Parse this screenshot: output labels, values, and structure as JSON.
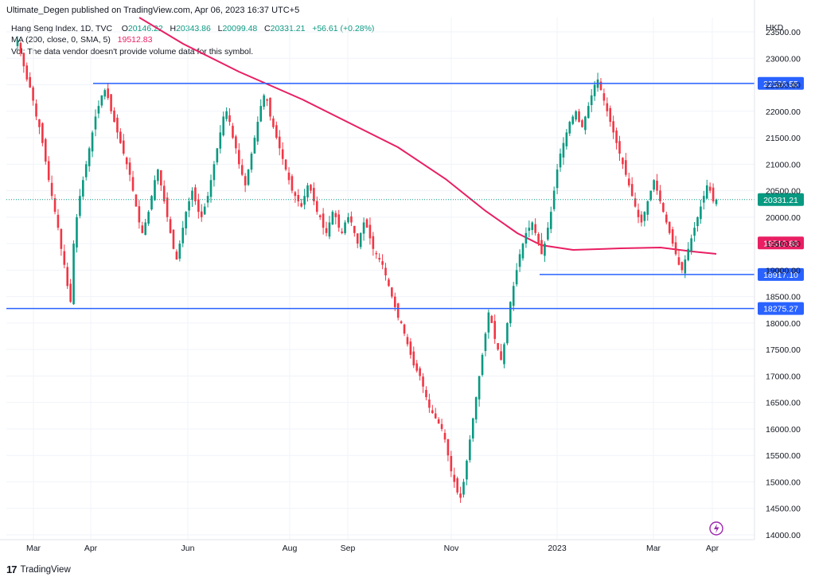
{
  "header": {
    "published": "Ultimate_Degen published on TradingView.com, Apr 06, 2023 16:37 UTC+5"
  },
  "legend": {
    "symbol": "Hang Seng Index, 1D, TVC",
    "o_label": "O",
    "o_value": "20146.22",
    "h_label": "H",
    "h_value": "20343.86",
    "l_label": "L",
    "l_value": "20099.48",
    "c_label": "C",
    "c_value": "20331.21",
    "change": "+56.61 (+0.28%)",
    "ma_label": "MA (200, close, 0, SMA, 5)",
    "ma_value": "19512.83",
    "vol_note": "Vol: The data vendor doesn't provide volume data for this symbol."
  },
  "footer": {
    "brand": "TradingView",
    "logo": "17"
  },
  "colors": {
    "up": "#089981",
    "down": "#f23645",
    "ma": "#e91e63",
    "hline": "#2962ff",
    "grid": "#f0f3fa",
    "axis_text": "#131722",
    "last_price": "#089981"
  },
  "chart_data": {
    "type": "candlestick",
    "currency": "HKD",
    "ylim": [
      13900,
      24000
    ],
    "y_ticks": [
      14000,
      14500,
      15000,
      15500,
      16000,
      16500,
      17000,
      17500,
      18000,
      18500,
      19000,
      19500,
      20000,
      20500,
      21000,
      21500,
      22000,
      22500,
      23000,
      23500
    ],
    "x_ticks": [
      "Mar",
      "Apr",
      "Jun",
      "Aug",
      "Sep",
      "Nov",
      "2023",
      "Mar",
      "Apr"
    ],
    "horizontal_lines": [
      {
        "label": "22526.55",
        "value": 22526.55
      },
      {
        "label": "18917.10",
        "value": 18917.1
      },
      {
        "label": "18275.27",
        "value": 18275.27
      }
    ],
    "last_price": {
      "label": "20331.21",
      "value": 20331.21
    },
    "ma_last": {
      "label": "19512.83",
      "value": 19512.83
    },
    "closes": [
      23350,
      23100,
      22850,
      22600,
      22450,
      22200,
      21900,
      21700,
      21400,
      21050,
      20700,
      20400,
      20100,
      19800,
      19400,
      19100,
      18700,
      18400,
      19500,
      20000,
      20400,
      20700,
      21000,
      21300,
      21600,
      21900,
      22100,
      22300,
      22400,
      22250,
      22000,
      21800,
      21600,
      21400,
      21200,
      21000,
      20800,
      20500,
      20200,
      19900,
      19700,
      19900,
      20100,
      20400,
      20700,
      20900,
      20600,
      20300,
      20000,
      19700,
      19400,
      19200,
      19500,
      19800,
      20100,
      20300,
      20500,
      20300,
      20100,
      20000,
      20200,
      20400,
      20700,
      21000,
      21300,
      21600,
      21900,
      22000,
      21800,
      21500,
      21300,
      21000,
      20800,
      20600,
      20900,
      21200,
      21500,
      21800,
      22100,
      22300,
      22200,
      21900,
      21700,
      21500,
      21300,
      21100,
      20900,
      20700,
      20500,
      20400,
      20300,
      20200,
      20400,
      20600,
      20500,
      20300,
      20100,
      20000,
      19800,
      19700,
      19900,
      20100,
      20000,
      19800,
      19700,
      19900,
      20000,
      19900,
      19700,
      19500,
      19700,
      19900,
      19800,
      19600,
      19400,
      19300,
      19200,
      19100,
      18900,
      18700,
      18500,
      18300,
      18100,
      18000,
      17800,
      17600,
      17400,
      17200,
      17100,
      17000,
      16800,
      16600,
      16400,
      16300,
      16200,
      16100,
      16000,
      15800,
      15500,
      15200,
      15000,
      14800,
      14700,
      15000,
      15400,
      15800,
      16200,
      16600,
      17000,
      17400,
      17800,
      18200,
      18000,
      17700,
      17500,
      17300,
      17600,
      18000,
      18400,
      18700,
      19000,
      19300,
      19500,
      19700,
      19800,
      19900,
      19700,
      19500,
      19300,
      19500,
      19800,
      20100,
      20500,
      20900,
      21200,
      21400,
      21600,
      21800,
      21900,
      22000,
      21800,
      21700,
      21900,
      22100,
      22300,
      22500,
      22600,
      22400,
      22200,
      22000,
      21800,
      21600,
      21400,
      21200,
      21000,
      20800,
      20600,
      20400,
      20200,
      20000,
      19900,
      20100,
      20300,
      20500,
      20700,
      20500,
      20300,
      20100,
      19900,
      19700,
      19500,
      19300,
      19100,
      19000,
      19200,
      19400,
      19600,
      19800,
      20000,
      20200,
      20400,
      20600,
      20500,
      20300,
      20331
    ]
  }
}
